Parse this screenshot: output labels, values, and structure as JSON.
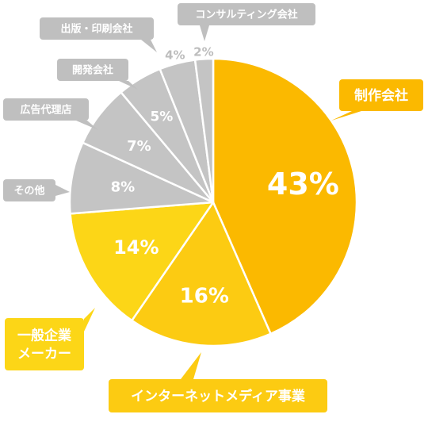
{
  "chart_data": {
    "type": "pie",
    "start_angle_deg": 0,
    "direction": "clockwise",
    "slices": [
      {
        "label": "制作会社",
        "value": 43,
        "value_label": "43%",
        "color": "#FBB900",
        "label_color": "#FBB900",
        "label_text_color": "#FFFFFF"
      },
      {
        "label": "インターネットメディア事業",
        "value": 16,
        "value_label": "16%",
        "color": "#FCCB12",
        "label_color": "#FCCB12",
        "label_text_color": "#FFFFFF"
      },
      {
        "label": "一般企業\nメーカー",
        "value": 14,
        "value_label": "14%",
        "color": "#FCD617",
        "label_color": "#FCD617",
        "label_text_color": "#FFFFFF"
      },
      {
        "label": "その他",
        "value": 8,
        "value_label": "8%",
        "color": "#C4C4C4",
        "label_color": "#BFBFBF",
        "label_text_color": "#FFFFFF"
      },
      {
        "label": "広告代理店",
        "value": 7,
        "value_label": "7%",
        "color": "#C4C4C4",
        "label_color": "#BFBFBF",
        "label_text_color": "#FFFFFF"
      },
      {
        "label": "開発会社",
        "value": 5,
        "value_label": "5%",
        "color": "#C4C4C4",
        "label_color": "#BFBFBF",
        "label_text_color": "#FFFFFF"
      },
      {
        "label": "出版・印刷会社",
        "value": 4,
        "value_label": "4%",
        "color": "#C4C4C4",
        "label_color": "#BFBFBF",
        "label_text_color": "#FFFFFF"
      },
      {
        "label": "コンサルティング会社",
        "value": 2,
        "value_label": "2%",
        "color": "#C4C4C4",
        "label_color": "#BFBFBF",
        "label_text_color": "#FFFFFF"
      }
    ],
    "slice_border_color": "#FFFFFF",
    "title": "",
    "legend": "none"
  }
}
